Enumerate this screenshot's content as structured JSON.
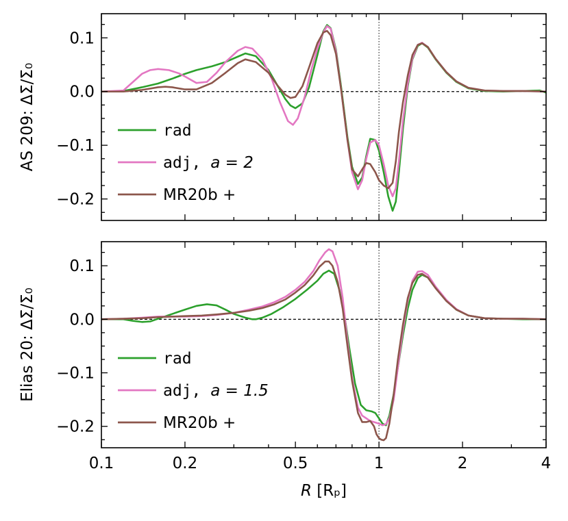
{
  "chart_data": [
    {
      "type": "line",
      "panel": "top",
      "ylabel": "AS 209: ΔΣ̄/Σ₀",
      "ylabel_prefix": "AS 209: ",
      "ylabel_math": "ΔΣ̄/Σ₀",
      "xscale": "log",
      "xlim": [
        0.1,
        4
      ],
      "ylim": [
        -0.24,
        0.145
      ],
      "yticks": [
        0.1,
        0.0,
        -0.1,
        -0.2
      ],
      "ytick_labels": [
        "0.1",
        "0.0",
        "−0.1",
        "−0.2"
      ],
      "vline_x": 1.0,
      "hline_y": 0.0,
      "legend_position": "lower-left",
      "series": [
        {
          "name": "rad",
          "legend_text": "rad",
          "legend_math": "",
          "color": "#2ca02c",
          "x": [
            0.1,
            0.12,
            0.14,
            0.16,
            0.18,
            0.2,
            0.22,
            0.25,
            0.28,
            0.31,
            0.33,
            0.36,
            0.4,
            0.43,
            0.46,
            0.48,
            0.5,
            0.53,
            0.56,
            0.6,
            0.63,
            0.65,
            0.67,
            0.7,
            0.73,
            0.77,
            0.8,
            0.84,
            0.87,
            0.9,
            0.93,
            0.97,
            1.0,
            1.04,
            1.08,
            1.12,
            1.15,
            1.18,
            1.22,
            1.27,
            1.32,
            1.38,
            1.43,
            1.5,
            1.6,
            1.75,
            1.9,
            2.1,
            2.4,
            2.8,
            3.3,
            3.8,
            4.0
          ],
          "y": [
            0,
            0.001,
            0.008,
            0.015,
            0.024,
            0.033,
            0.04,
            0.047,
            0.055,
            0.065,
            0.071,
            0.066,
            0.04,
            0.012,
            -0.014,
            -0.026,
            -0.031,
            -0.022,
            0.008,
            0.068,
            0.112,
            0.124,
            0.118,
            0.078,
            0.01,
            -0.085,
            -0.14,
            -0.172,
            -0.16,
            -0.12,
            -0.088,
            -0.09,
            -0.11,
            -0.15,
            -0.195,
            -0.222,
            -0.205,
            -0.15,
            -0.07,
            0.01,
            0.06,
            0.085,
            0.09,
            0.082,
            0.06,
            0.035,
            0.018,
            0.006,
            0.001,
            0.0,
            0.001,
            0.002,
            -0.002
          ]
        },
        {
          "name": "adj",
          "legend_text": "adj, ",
          "legend_math": "a = 2",
          "color": "#e377c2",
          "x": [
            0.1,
            0.12,
            0.13,
            0.14,
            0.15,
            0.16,
            0.175,
            0.19,
            0.2,
            0.22,
            0.24,
            0.26,
            0.28,
            0.31,
            0.33,
            0.35,
            0.38,
            0.41,
            0.44,
            0.47,
            0.49,
            0.51,
            0.54,
            0.57,
            0.6,
            0.63,
            0.65,
            0.67,
            0.7,
            0.73,
            0.77,
            0.8,
            0.84,
            0.87,
            0.9,
            0.93,
            0.97,
            1.0,
            1.04,
            1.08,
            1.12,
            1.15,
            1.18,
            1.22,
            1.27,
            1.32,
            1.38,
            1.43,
            1.5,
            1.6,
            1.75,
            1.9,
            2.1,
            2.4,
            2.8,
            3.3,
            4.0
          ],
          "y": [
            0,
            0.002,
            0.018,
            0.033,
            0.04,
            0.042,
            0.04,
            0.034,
            0.028,
            0.016,
            0.018,
            0.035,
            0.055,
            0.076,
            0.083,
            0.08,
            0.06,
            0.025,
            -0.02,
            -0.055,
            -0.062,
            -0.05,
            -0.01,
            0.04,
            0.08,
            0.11,
            0.122,
            0.117,
            0.075,
            0.005,
            -0.09,
            -0.15,
            -0.182,
            -0.165,
            -0.125,
            -0.095,
            -0.09,
            -0.1,
            -0.135,
            -0.175,
            -0.195,
            -0.18,
            -0.13,
            -0.055,
            0.015,
            0.062,
            0.087,
            0.091,
            0.083,
            0.061,
            0.036,
            0.019,
            0.007,
            0.002,
            0.001,
            0.001,
            0.0
          ]
        },
        {
          "name": "MR20b+",
          "legend_text": "MR20b",
          "legend_math": "+",
          "color": "#8c564b",
          "x": [
            0.1,
            0.12,
            0.14,
            0.16,
            0.17,
            0.18,
            0.2,
            0.22,
            0.25,
            0.28,
            0.31,
            0.33,
            0.36,
            0.4,
            0.43,
            0.46,
            0.48,
            0.5,
            0.53,
            0.56,
            0.6,
            0.63,
            0.65,
            0.67,
            0.7,
            0.73,
            0.77,
            0.8,
            0.84,
            0.87,
            0.9,
            0.93,
            0.97,
            1.0,
            1.04,
            1.08,
            1.12,
            1.15,
            1.18,
            1.22,
            1.27,
            1.32,
            1.38,
            1.43,
            1.5,
            1.6,
            1.75,
            1.9,
            2.1,
            2.4,
            2.8,
            3.3,
            4.0
          ],
          "y": [
            0,
            0.0,
            0.003,
            0.008,
            0.009,
            0.008,
            0.004,
            0.004,
            0.016,
            0.035,
            0.053,
            0.06,
            0.055,
            0.035,
            0.012,
            -0.006,
            -0.012,
            -0.01,
            0.01,
            0.045,
            0.09,
            0.11,
            0.113,
            0.105,
            0.07,
            0.005,
            -0.09,
            -0.145,
            -0.158,
            -0.145,
            -0.133,
            -0.135,
            -0.15,
            -0.165,
            -0.175,
            -0.18,
            -0.17,
            -0.13,
            -0.075,
            -0.02,
            0.03,
            0.068,
            0.087,
            0.09,
            0.083,
            0.061,
            0.036,
            0.019,
            0.007,
            0.002,
            0.001,
            0.001,
            0.0
          ]
        }
      ]
    },
    {
      "type": "line",
      "panel": "bottom",
      "ylabel": "Elias 20: ΔΣ̄/Σ₀",
      "ylabel_prefix": "Elias 20: ",
      "ylabel_math": "ΔΣ̄/Σ₀",
      "xscale": "log",
      "xlim": [
        0.1,
        4
      ],
      "ylim": [
        -0.24,
        0.145
      ],
      "xlabel": "R [Rp]",
      "xlabel_math": "R",
      "xlabel_unit": "[Rₚ]",
      "xticks": [
        0.1,
        0.2,
        0.5,
        1,
        2,
        4
      ],
      "xtick_labels": [
        "0.1",
        "0.2",
        "0.5",
        "1",
        "2",
        "4"
      ],
      "yticks": [
        0.1,
        0.0,
        -0.1,
        -0.2
      ],
      "ytick_labels": [
        "0.1",
        "0.0",
        "−0.1",
        "−0.2"
      ],
      "vline_x": 1.0,
      "hline_y": 0.0,
      "legend_position": "lower-left",
      "series": [
        {
          "name": "rad",
          "legend_text": "rad",
          "legend_math": "",
          "color": "#2ca02c",
          "x": [
            0.1,
            0.12,
            0.13,
            0.14,
            0.15,
            0.16,
            0.18,
            0.2,
            0.22,
            0.24,
            0.26,
            0.28,
            0.3,
            0.33,
            0.35,
            0.36,
            0.38,
            0.41,
            0.45,
            0.5,
            0.55,
            0.6,
            0.63,
            0.66,
            0.69,
            0.72,
            0.75,
            0.78,
            0.82,
            0.86,
            0.9,
            0.94,
            0.97,
            1.0,
            1.03,
            1.06,
            1.09,
            1.13,
            1.17,
            1.22,
            1.27,
            1.32,
            1.38,
            1.43,
            1.5,
            1.6,
            1.75,
            1.9,
            2.1,
            2.4,
            2.8,
            3.3,
            4.0
          ],
          "y": [
            0,
            0.0,
            -0.003,
            -0.005,
            -0.004,
            0.001,
            0.01,
            0.018,
            0.025,
            0.028,
            0.026,
            0.018,
            0.01,
            0.003,
            0.0,
            0.0,
            0.003,
            0.01,
            0.022,
            0.038,
            0.055,
            0.072,
            0.085,
            0.091,
            0.085,
            0.055,
            0.01,
            -0.05,
            -0.12,
            -0.16,
            -0.17,
            -0.172,
            -0.175,
            -0.185,
            -0.195,
            -0.198,
            -0.18,
            -0.14,
            -0.09,
            -0.03,
            0.02,
            0.055,
            0.077,
            0.083,
            0.078,
            0.059,
            0.035,
            0.018,
            0.007,
            0.002,
            0.001,
            0.0,
            0.0
          ]
        },
        {
          "name": "adj",
          "legend_text": "adj, ",
          "legend_math": "a = 1.5",
          "color": "#e377c2",
          "x": [
            0.1,
            0.12,
            0.14,
            0.16,
            0.18,
            0.2,
            0.23,
            0.26,
            0.3,
            0.34,
            0.38,
            0.42,
            0.46,
            0.5,
            0.54,
            0.58,
            0.61,
            0.64,
            0.66,
            0.68,
            0.71,
            0.74,
            0.77,
            0.8,
            0.84,
            0.87,
            0.9,
            0.93,
            0.96,
            1.0,
            1.03,
            1.06,
            1.09,
            1.13,
            1.17,
            1.22,
            1.27,
            1.32,
            1.38,
            1.43,
            1.5,
            1.6,
            1.75,
            1.9,
            2.1,
            2.4,
            2.8,
            3.3,
            4.0
          ],
          "y": [
            0,
            0.001,
            0.003,
            0.005,
            0.005,
            0.005,
            0.006,
            0.008,
            0.012,
            0.018,
            0.024,
            0.032,
            0.042,
            0.055,
            0.07,
            0.09,
            0.11,
            0.125,
            0.131,
            0.127,
            0.1,
            0.04,
            -0.04,
            -0.11,
            -0.165,
            -0.18,
            -0.185,
            -0.19,
            -0.192,
            -0.195,
            -0.198,
            -0.196,
            -0.185,
            -0.15,
            -0.09,
            -0.02,
            0.035,
            0.072,
            0.089,
            0.09,
            0.083,
            0.061,
            0.036,
            0.019,
            0.007,
            0.002,
            0.001,
            0.001,
            0.0
          ]
        },
        {
          "name": "MR20b+",
          "legend_text": "MR20b",
          "legend_math": "+",
          "color": "#8c564b",
          "x": [
            0.1,
            0.12,
            0.14,
            0.16,
            0.18,
            0.2,
            0.23,
            0.26,
            0.3,
            0.34,
            0.38,
            0.42,
            0.46,
            0.5,
            0.54,
            0.58,
            0.61,
            0.64,
            0.66,
            0.68,
            0.71,
            0.74,
            0.77,
            0.8,
            0.84,
            0.87,
            0.9,
            0.93,
            0.96,
            0.98,
            1.0,
            1.02,
            1.04,
            1.06,
            1.09,
            1.13,
            1.17,
            1.22,
            1.27,
            1.32,
            1.38,
            1.43,
            1.5,
            1.6,
            1.75,
            1.9,
            2.1,
            2.4,
            2.8,
            3.3,
            4.0
          ],
          "y": [
            0,
            0.001,
            0.002,
            0.004,
            0.005,
            0.006,
            0.007,
            0.009,
            0.012,
            0.016,
            0.021,
            0.028,
            0.037,
            0.05,
            0.064,
            0.082,
            0.098,
            0.108,
            0.108,
            0.1,
            0.07,
            0.02,
            -0.05,
            -0.115,
            -0.175,
            -0.192,
            -0.192,
            -0.19,
            -0.2,
            -0.215,
            -0.222,
            -0.225,
            -0.226,
            -0.222,
            -0.195,
            -0.14,
            -0.075,
            -0.01,
            0.04,
            0.068,
            0.083,
            0.085,
            0.078,
            0.058,
            0.034,
            0.018,
            0.007,
            0.002,
            0.001,
            0.001,
            0.0
          ]
        }
      ]
    }
  ]
}
